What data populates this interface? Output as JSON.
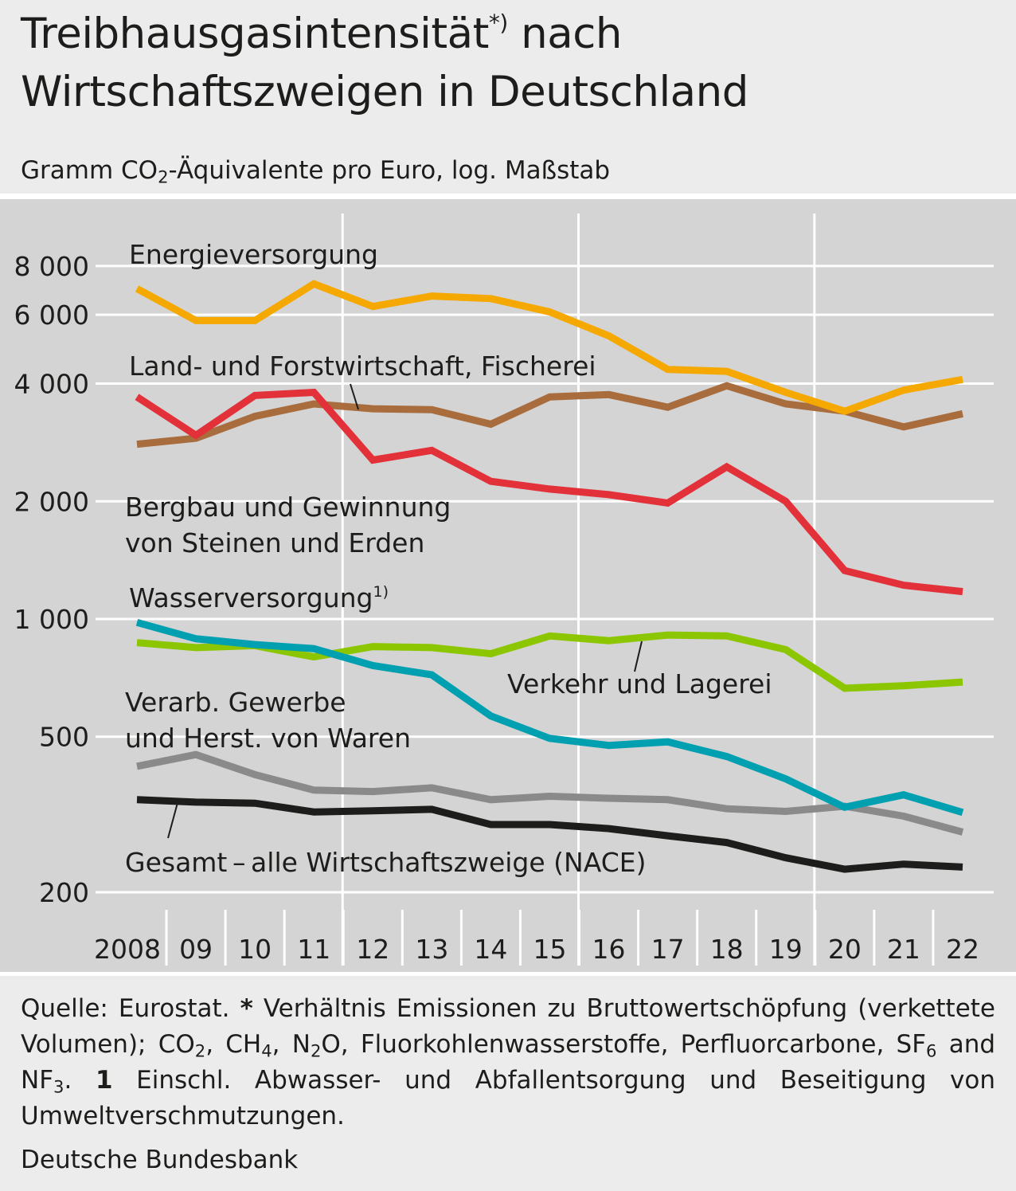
{
  "header": {
    "title_part1": "Treibhausgasintensität",
    "title_mark": "*)",
    "title_part2": " nach",
    "title_line2": "Wirtschaftszweigen in Deutschland",
    "subtitle_pre": "Gramm CO",
    "subtitle_sub": "2",
    "subtitle_post": "-Äquivalente pro Euro, log. Maßstab"
  },
  "footnote": {
    "t1": "Quelle: Eurostat. ",
    "star": "*",
    "t2": " Verhältnis Emissionen zu Bruttowertschöpfung (verkettete Volumen); CO",
    "s1": "2",
    "t3": ", CH",
    "s2": "4",
    "t4": ", N",
    "s3": "2",
    "t5": "O, Fluorkohlenwasserstoffe, Perfluorcarbone, SF",
    "s4": "6",
    "t6": " and NF",
    "s5": "3",
    "t7": ". ",
    "one": "1",
    "t8": " Einschl. Abwasser- und Abfallentsorgung und Beseitigung von Umweltverschmutzungen."
  },
  "source": "Deutsche Bundesbank",
  "chart_data": {
    "type": "line",
    "yscale": "log",
    "ylim": [
      200,
      10000
    ],
    "y_ticks": [
      200,
      500,
      1000,
      2000,
      4000,
      6000,
      8000
    ],
    "y_tick_labels": [
      "200",
      "500",
      "1 000",
      "2 000",
      "4 000",
      "6 000",
      "8 000"
    ],
    "x": [
      2008,
      2009,
      2010,
      2011,
      2012,
      2013,
      2014,
      2015,
      2016,
      2017,
      2018,
      2019,
      2020,
      2021,
      2022
    ],
    "x_tick_labels": [
      "2008",
      "09",
      "10",
      "11",
      "12",
      "13",
      "14",
      "15",
      "16",
      "17",
      "18",
      "19",
      "20",
      "21",
      "22"
    ],
    "grid": "horizontal lines at y ticks; vertical lines at 2012, 2016, 2020",
    "series": [
      {
        "name": "Energieversorgung",
        "color": "#f5a800",
        "values": [
          7000,
          5800,
          5800,
          7200,
          6300,
          6700,
          6600,
          6100,
          5300,
          4350,
          4300,
          3800,
          3400,
          3850,
          4100
        ]
      },
      {
        "name": "Land- und Forstwirtschaft, Fischerei",
        "color": "#a86c3d",
        "values": [
          2800,
          2900,
          3300,
          3550,
          3450,
          3430,
          3150,
          3700,
          3750,
          3480,
          3950,
          3550,
          3400,
          3100,
          3350
        ]
      },
      {
        "name": "Bergbau und Gewinnung von Steinen und Erden",
        "color": "#e3313a",
        "values": [
          3700,
          2950,
          3730,
          3800,
          2550,
          2700,
          2250,
          2150,
          2080,
          1980,
          2450,
          2000,
          1330,
          1220,
          1175
        ]
      },
      {
        "name": "Wasserversorgung",
        "sup": "1)",
        "color": "#00a0b1",
        "values": [
          980,
          890,
          860,
          840,
          760,
          720,
          565,
          495,
          475,
          485,
          445,
          390,
          330,
          355,
          320
        ]
      },
      {
        "name": "Verkehr und Lagerei",
        "color": "#8cc600",
        "values": [
          870,
          845,
          855,
          800,
          850,
          845,
          815,
          905,
          880,
          910,
          905,
          835,
          665,
          675,
          690
        ]
      },
      {
        "name": "Verarb. Gewerbe und Herst. von Waren",
        "color": "#8a8a8a",
        "values": [
          420,
          450,
          400,
          365,
          362,
          370,
          345,
          352,
          348,
          345,
          327,
          322,
          332,
          313,
          285
        ]
      },
      {
        "name": "Gesamt – alle Wirtschaftszweige (NACE)",
        "color": "#1d1d1b",
        "values": [
          345,
          340,
          338,
          321,
          323,
          326,
          298,
          298,
          291,
          279,
          268,
          245,
          229,
          236,
          232
        ]
      }
    ],
    "labels": {
      "energie": "Energieversorgung",
      "land": "Land- und Forstwirtschaft, Fischerei",
      "bergbau_1": "Bergbau und Gewinnung",
      "bergbau_2": "von Steinen und Erden",
      "wasser": "Wasserversorgung",
      "wasser_sup": "1)",
      "verkehr": "Verkehr und Lagerei",
      "verarb_1": "Verarb. Gewerbe",
      "verarb_2": "und Herst. von Waren",
      "gesamt": "Gesamt – alle Wirtschaftszweige (NACE)"
    }
  }
}
